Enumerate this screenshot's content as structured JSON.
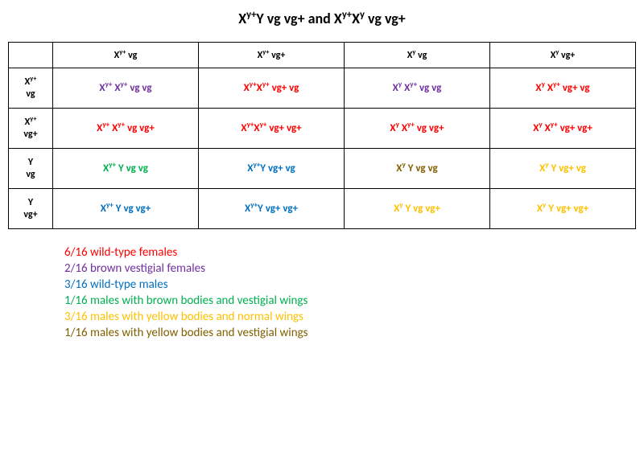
{
  "colors": {
    "red": "#ff0000",
    "purple": "#7030a0",
    "blue": "#0070c0",
    "green": "#00b050",
    "olive": "#806000",
    "gold": "#ffc000",
    "black": "#000000"
  },
  "title_parts": {
    "p1": "X",
    "p1_sup": "y+",
    "p2": "Y vg vg+",
    "mid": " and ",
    "p3": "X",
    "p3_sup": "y+",
    "p4": "X",
    "p4_sup": "y",
    "p5": " vg vg+"
  },
  "col_heads": [
    {
      "a": "X",
      "asup": "y+",
      "b": "  vg"
    },
    {
      "a": "X",
      "asup": "y+",
      "b": "  vg+"
    },
    {
      "a": "X",
      "asup": "y",
      "b": "  vg"
    },
    {
      "a": "X",
      "asup": "y",
      "b": "  vg+"
    }
  ],
  "row_heads": [
    {
      "l1a": "X",
      "l1sup": "y+",
      "l2": "vg"
    },
    {
      "l1a": "X",
      "l1sup": "y+",
      "l2": "vg+"
    },
    {
      "l1a": "Y",
      "l1sup": "",
      "l2": "vg"
    },
    {
      "l1a": "Y",
      "l1sup": "",
      "l2": "vg+"
    }
  ],
  "cells": [
    [
      {
        "color": "purple",
        "t": [
          [
            "X",
            "y+"
          ],
          [
            " X",
            "y+"
          ],
          [
            " vg vg",
            ""
          ]
        ]
      },
      {
        "color": "red",
        "t": [
          [
            "X",
            "y+"
          ],
          [
            "X",
            "y+"
          ],
          [
            "  vg+ vg",
            ""
          ]
        ]
      },
      {
        "color": "purple",
        "t": [
          [
            "X",
            "y"
          ],
          [
            " X",
            "y+"
          ],
          [
            " vg vg",
            ""
          ]
        ]
      },
      {
        "color": "red",
        "t": [
          [
            "X",
            "y"
          ],
          [
            " X",
            "y+"
          ],
          [
            " vg+ vg",
            ""
          ]
        ]
      }
    ],
    [
      {
        "color": "red",
        "t": [
          [
            "X",
            "y+"
          ],
          [
            " X",
            "y+"
          ],
          [
            " vg vg+",
            ""
          ]
        ]
      },
      {
        "color": "red",
        "t": [
          [
            "X",
            "y+"
          ],
          [
            "X",
            "y+"
          ],
          [
            "  vg+ vg+",
            ""
          ]
        ]
      },
      {
        "color": "red",
        "t": [
          [
            "X",
            "y"
          ],
          [
            " X",
            "y+"
          ],
          [
            " vg vg+",
            ""
          ]
        ]
      },
      {
        "color": "red",
        "t": [
          [
            "X",
            "y"
          ],
          [
            " X",
            "y+"
          ],
          [
            " vg+ vg+",
            ""
          ]
        ]
      }
    ],
    [
      {
        "color": "green",
        "t": [
          [
            "X",
            "y+"
          ],
          [
            " Y vg vg",
            ""
          ]
        ]
      },
      {
        "color": "blue",
        "t": [
          [
            "X",
            "y+"
          ],
          [
            "Y  vg+ vg",
            ""
          ]
        ]
      },
      {
        "color": "olive",
        "t": [
          [
            "X",
            "y"
          ],
          [
            " Y vg vg",
            ""
          ]
        ]
      },
      {
        "color": "gold",
        "t": [
          [
            "X",
            "y"
          ],
          [
            " Y vg+ vg",
            ""
          ]
        ]
      }
    ],
    [
      {
        "color": "blue",
        "t": [
          [
            "X",
            "y+"
          ],
          [
            " Y vg vg+",
            ""
          ]
        ]
      },
      {
        "color": "blue",
        "t": [
          [
            "X",
            "y+"
          ],
          [
            "Y  vg+ vg+",
            ""
          ]
        ]
      },
      {
        "color": "gold",
        "t": [
          [
            "X",
            "y"
          ],
          [
            " Y vg vg+",
            ""
          ]
        ]
      },
      {
        "color": "gold",
        "t": [
          [
            "X",
            "y"
          ],
          [
            " Y vg+ vg+",
            ""
          ]
        ]
      }
    ]
  ],
  "legend": [
    {
      "color": "red",
      "text": "6/16 wild-type females"
    },
    {
      "color": "purple",
      "text": "2/16 brown vestigial females"
    },
    {
      "color": "blue",
      "text": "3/16 wild-type males"
    },
    {
      "color": "green",
      "text": "1/16 males with brown bodies and vestigial wings"
    },
    {
      "color": "gold",
      "text": "3/16 males with yellow bodies and normal wings"
    },
    {
      "color": "olive",
      "text": "1/16 males with yellow bodies and vestigial wings"
    }
  ]
}
